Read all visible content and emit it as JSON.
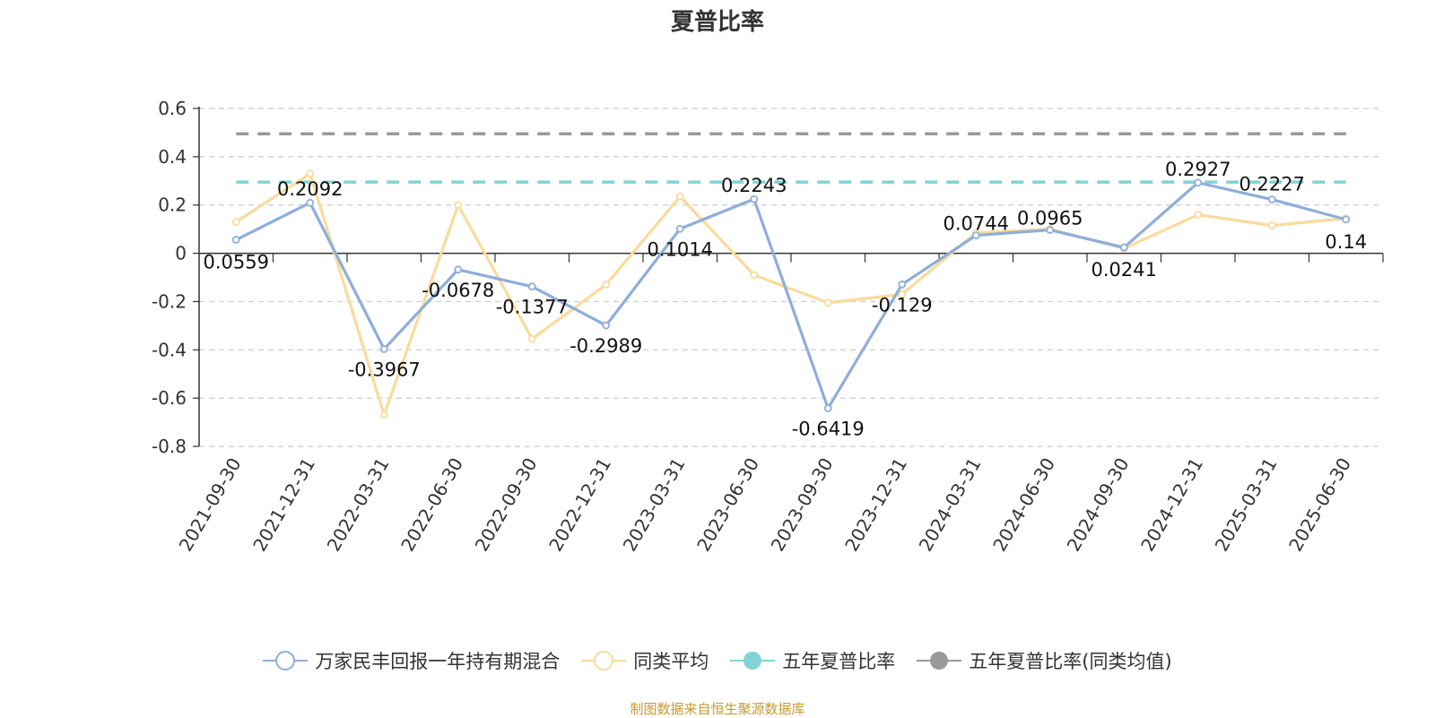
{
  "title": "夏普比率",
  "footer": "制图数据来自恒生聚源数据库",
  "chart_data": {
    "type": "line",
    "categories": [
      "2021-09-30",
      "2021-12-31",
      "2022-03-31",
      "2022-06-30",
      "2022-09-30",
      "2022-12-31",
      "2023-03-31",
      "2023-06-30",
      "2023-09-30",
      "2023-12-31",
      "2024-03-31",
      "2024-06-30",
      "2024-09-30",
      "2024-12-31",
      "2025-03-31",
      "2025-06-30"
    ],
    "ylim": [
      -0.8,
      0.6
    ],
    "yticks": [
      -0.8,
      -0.6,
      -0.4,
      -0.2,
      0,
      0.2,
      0.4,
      0.6
    ],
    "grid": true,
    "legend_position": "bottom",
    "series": [
      {
        "name": "万家民丰回报一年持有期混合",
        "color": "#8eaedb",
        "labels": true,
        "values": [
          0.0559,
          0.2092,
          -0.3967,
          -0.0678,
          -0.1377,
          -0.2989,
          0.1014,
          0.2243,
          -0.6419,
          -0.129,
          0.0744,
          0.0965,
          0.0241,
          0.2927,
          0.2227,
          0.14
        ]
      },
      {
        "name": "同类平均",
        "color": "#fadb9c",
        "labels": false,
        "values": [
          0.13,
          0.33,
          -0.67,
          0.2,
          -0.355,
          -0.13,
          0.235,
          -0.09,
          -0.205,
          -0.17,
          0.085,
          0.1,
          0.02,
          0.16,
          0.115,
          0.145
        ]
      },
      {
        "name": "五年夏普比率",
        "color": "#80d4d4",
        "type": "reference",
        "value": 0.295
      },
      {
        "name": "五年夏普比率(同类均值)",
        "color": "#999999",
        "type": "reference",
        "value": 0.495
      }
    ]
  }
}
